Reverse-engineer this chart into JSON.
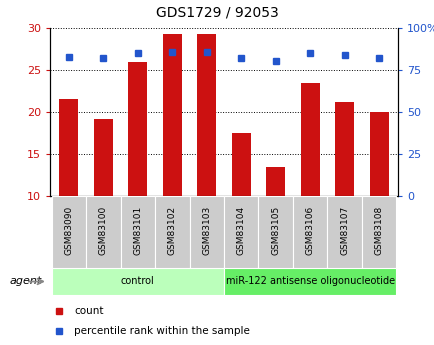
{
  "title": "GDS1729 / 92053",
  "samples": [
    "GSM83090",
    "GSM83100",
    "GSM83101",
    "GSM83102",
    "GSM83103",
    "GSM83104",
    "GSM83105",
    "GSM83106",
    "GSM83107",
    "GSM83108"
  ],
  "counts": [
    21.5,
    19.2,
    26.0,
    29.3,
    29.3,
    17.5,
    13.5,
    23.5,
    21.2,
    20.0
  ],
  "percentiles": [
    82.5,
    82.0,
    85.0,
    85.5,
    85.5,
    82.0,
    80.5,
    85.0,
    84.0,
    82.0
  ],
  "bar_color": "#cc1111",
  "dot_color": "#2255cc",
  "ylim_left": [
    10,
    30
  ],
  "ylim_right": [
    0,
    100
  ],
  "yticks_left": [
    10,
    15,
    20,
    25,
    30
  ],
  "yticks_right": [
    0,
    25,
    50,
    75,
    100
  ],
  "ytick_labels_right": [
    "0",
    "25",
    "50",
    "75",
    "100%"
  ],
  "group_labels": [
    "control",
    "miR-122 antisense oligonucleotide"
  ],
  "group_ranges": [
    [
      0,
      4
    ],
    [
      5,
      9
    ]
  ],
  "group_colors": [
    "#bbffbb",
    "#66ee66"
  ],
  "agent_label": "agent",
  "legend_count_label": "count",
  "legend_pct_label": "percentile rank within the sample",
  "bg_color": "#ffffff",
  "tick_area_bg": "#cccccc",
  "title_fontsize": 10
}
